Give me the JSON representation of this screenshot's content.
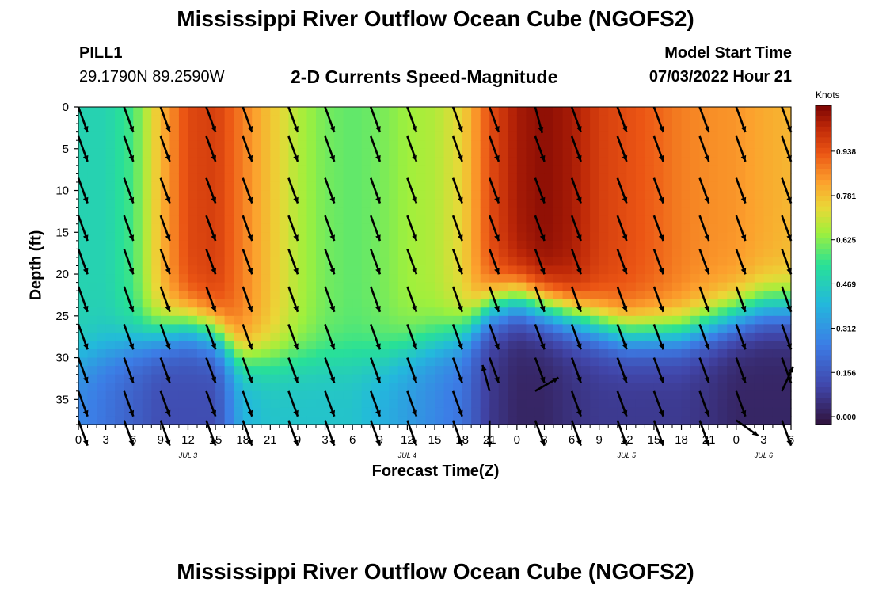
{
  "header": {
    "title": "Mississippi River Outflow Ocean Cube (NGOFS2)",
    "station": "PILL1",
    "coords": "29.1790N  89.2590W",
    "subtitle": "2-D Currents Speed-Magnitude",
    "start_label": "Model Start Time",
    "start_value": "07/03/2022 Hour 21"
  },
  "footer": {
    "title": "Mississippi River Outflow Ocean Cube (NGOFS2)"
  },
  "chart_data": {
    "type": "heatmap",
    "xlabel": "Forecast Time(Z)",
    "ylabel": "Depth (ft)",
    "x_hours_range": [
      0,
      78
    ],
    "x_tick_labels": [
      "0",
      "3",
      "6",
      "9",
      "12",
      "15",
      "18",
      "21",
      "0",
      "3",
      "6",
      "9",
      "12",
      "15",
      "18",
      "21",
      "0",
      "3",
      "6",
      "9",
      "12",
      "15",
      "18",
      "21",
      "0",
      "3",
      "6"
    ],
    "date_labels": [
      {
        "text": "JUL 3",
        "at_hour": 12
      },
      {
        "text": "JUL 4",
        "at_hour": 36
      },
      {
        "text": "JUL 5",
        "at_hour": 60
      },
      {
        "text": "JUL 6",
        "at_hour": 75
      }
    ],
    "y_ticks": [
      0,
      5,
      10,
      15,
      20,
      25,
      30,
      35
    ],
    "ylim": [
      0,
      38
    ],
    "colorbar": {
      "title": "Knots",
      "ticks": [
        "0.938",
        "0.781",
        "0.625",
        "0.469",
        "0.312",
        "0.156",
        "0.000"
      ],
      "range": [
        0,
        1.1
      ]
    },
    "speed_profiles": [
      {
        "hour": 0,
        "surface": 0.5,
        "bottom": 0.3,
        "mld": 30
      },
      {
        "hour": 3,
        "surface": 0.5,
        "bottom": 0.25,
        "mld": 29
      },
      {
        "hour": 6,
        "surface": 0.58,
        "bottom": 0.2,
        "mld": 28
      },
      {
        "hour": 9,
        "surface": 0.8,
        "bottom": 0.15,
        "mld": 27
      },
      {
        "hour": 12,
        "surface": 0.96,
        "bottom": 0.15,
        "mld": 26
      },
      {
        "hour": 15,
        "surface": 0.98,
        "bottom": 0.15,
        "mld": 27
      },
      {
        "hour": 18,
        "surface": 0.88,
        "bottom": 0.4,
        "mld": 30
      },
      {
        "hour": 21,
        "surface": 0.78,
        "bottom": 0.45,
        "mld": 30
      },
      {
        "hour": 24,
        "surface": 0.68,
        "bottom": 0.45,
        "mld": 30
      },
      {
        "hour": 27,
        "surface": 0.62,
        "bottom": 0.45,
        "mld": 30
      },
      {
        "hour": 30,
        "surface": 0.6,
        "bottom": 0.45,
        "mld": 30
      },
      {
        "hour": 33,
        "surface": 0.62,
        "bottom": 0.4,
        "mld": 30
      },
      {
        "hour": 36,
        "surface": 0.66,
        "bottom": 0.35,
        "mld": 29
      },
      {
        "hour": 39,
        "surface": 0.68,
        "bottom": 0.3,
        "mld": 28
      },
      {
        "hour": 42,
        "surface": 0.75,
        "bottom": 0.25,
        "mld": 27
      },
      {
        "hour": 45,
        "surface": 0.95,
        "bottom": 0.1,
        "mld": 24
      },
      {
        "hour": 48,
        "surface": 1.05,
        "bottom": 0.05,
        "mld": 23
      },
      {
        "hour": 51,
        "surface": 1.08,
        "bottom": 0.05,
        "mld": 24
      },
      {
        "hour": 54,
        "surface": 1.05,
        "bottom": 0.08,
        "mld": 25
      },
      {
        "hour": 57,
        "surface": 0.98,
        "bottom": 0.1,
        "mld": 26
      },
      {
        "hour": 60,
        "surface": 0.95,
        "bottom": 0.1,
        "mld": 27
      },
      {
        "hour": 63,
        "surface": 0.92,
        "bottom": 0.1,
        "mld": 27
      },
      {
        "hour": 66,
        "surface": 0.88,
        "bottom": 0.1,
        "mld": 27
      },
      {
        "hour": 69,
        "surface": 0.86,
        "bottom": 0.08,
        "mld": 26
      },
      {
        "hour": 72,
        "surface": 0.85,
        "bottom": 0.05,
        "mld": 25
      },
      {
        "hour": 75,
        "surface": 0.82,
        "bottom": 0.05,
        "mld": 24
      },
      {
        "hour": 78,
        "surface": 0.8,
        "bottom": 0.05,
        "mld": 24
      }
    ],
    "arrows": {
      "hours": [
        0,
        5,
        9,
        14,
        18,
        23,
        27,
        32,
        36,
        41,
        45,
        50,
        54,
        59,
        63,
        68,
        72,
        77
      ],
      "depths": [
        0,
        3.5,
        8.5,
        13,
        17,
        21.5,
        26,
        30,
        34,
        37.5
      ],
      "default_direction_deg": 160,
      "special": [
        {
          "hour": 45,
          "depth": 34,
          "direction_deg": 345
        },
        {
          "hour": 45,
          "depth": 37.5,
          "direction_deg": 180
        },
        {
          "hour": 50,
          "depth": 34,
          "direction_deg": 60
        },
        {
          "hour": 50,
          "depth": 0,
          "direction_deg": 165
        },
        {
          "hour": 72,
          "depth": 37.5,
          "direction_deg": 125
        },
        {
          "hour": 77,
          "depth": 34,
          "direction_deg": 25
        }
      ]
    },
    "colors": {
      "background": "#ffffff",
      "arrow": "#000000"
    }
  }
}
